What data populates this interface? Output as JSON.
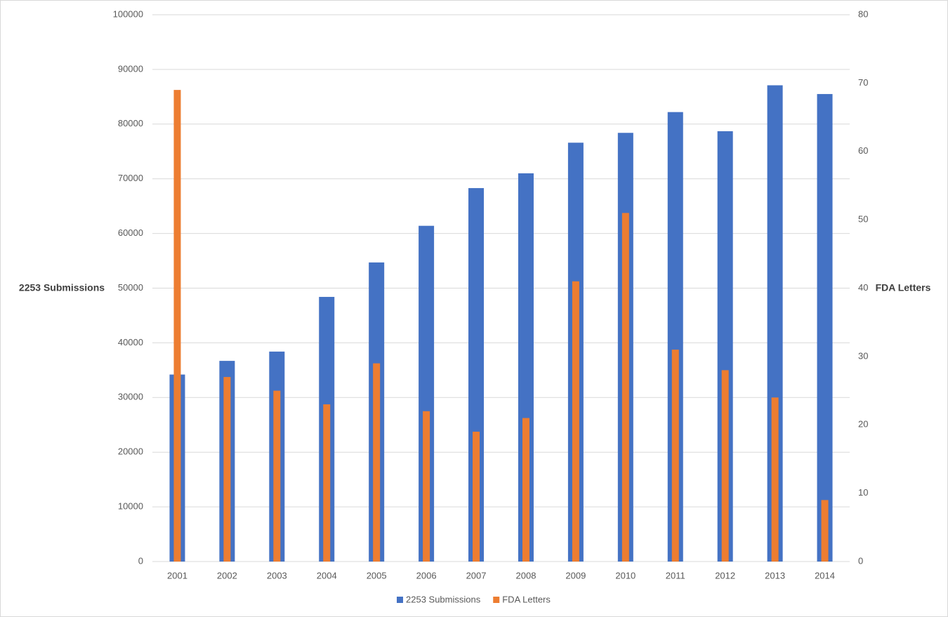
{
  "chart_data": {
    "type": "bar",
    "y_label": "2253 Submissions",
    "y2_label": "FDA Letters",
    "categories": [
      "2001",
      "2002",
      "2003",
      "2004",
      "2005",
      "2006",
      "2007",
      "2008",
      "2009",
      "2010",
      "2011",
      "2012",
      "2013",
      "2014"
    ],
    "series": [
      {
        "name": "2253 Submissions",
        "color": "#4472c4",
        "values": [
          34200,
          36700,
          38400,
          48400,
          54700,
          61400,
          68300,
          71000,
          76600,
          78400,
          82200,
          78700,
          87100,
          85500
        ]
      },
      {
        "name": "FDA Letters",
        "color": "#ed7d31",
        "axis": "y2",
        "values": [
          69,
          27,
          25,
          23,
          29,
          22,
          19,
          21,
          41,
          51,
          31,
          28,
          24,
          9
        ]
      }
    ],
    "ylim": [
      0,
      100000
    ],
    "yticks": [
      0,
      10000,
      20000,
      30000,
      40000,
      50000,
      60000,
      70000,
      80000,
      90000,
      100000
    ],
    "y2lim": [
      0,
      80
    ],
    "y2ticks": [
      0,
      10,
      20,
      30,
      40,
      50,
      60,
      70,
      80
    ],
    "grid": true,
    "legend": "bottom"
  }
}
